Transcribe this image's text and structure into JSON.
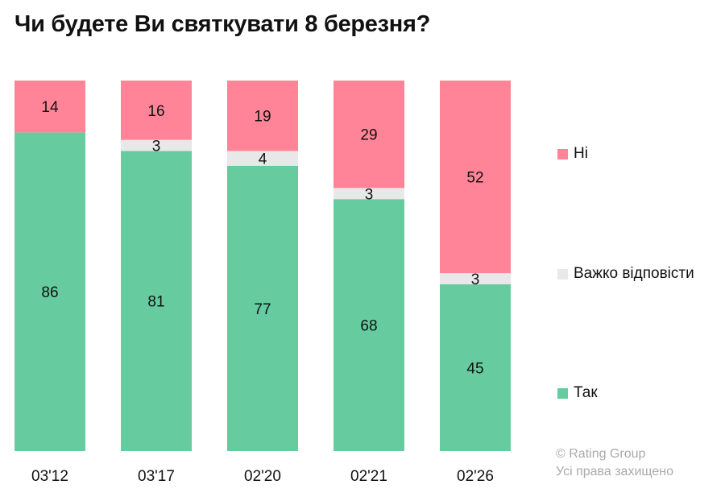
{
  "chart_data": {
    "type": "bar",
    "stacked": true,
    "title": "Чи будете Ви святкувати 8 березня?",
    "categories": [
      "03'12",
      "03'17",
      "02'20",
      "02'21",
      "02'26"
    ],
    "series": [
      {
        "name": "Так",
        "color": "#66cc9f",
        "values": [
          86,
          81,
          77,
          68,
          45
        ]
      },
      {
        "name": "Важко відповісти",
        "color": "#e8e8e8",
        "values": [
          null,
          3,
          4,
          3,
          3
        ]
      },
      {
        "name": "Ні",
        "color": "#ff8497",
        "values": [
          14,
          16,
          19,
          29,
          52
        ]
      }
    ],
    "ylim": [
      0,
      100
    ],
    "grid": false,
    "legend": "right"
  },
  "credit": {
    "line1": "© Rating Group",
    "line2": "Усі права захищено"
  }
}
